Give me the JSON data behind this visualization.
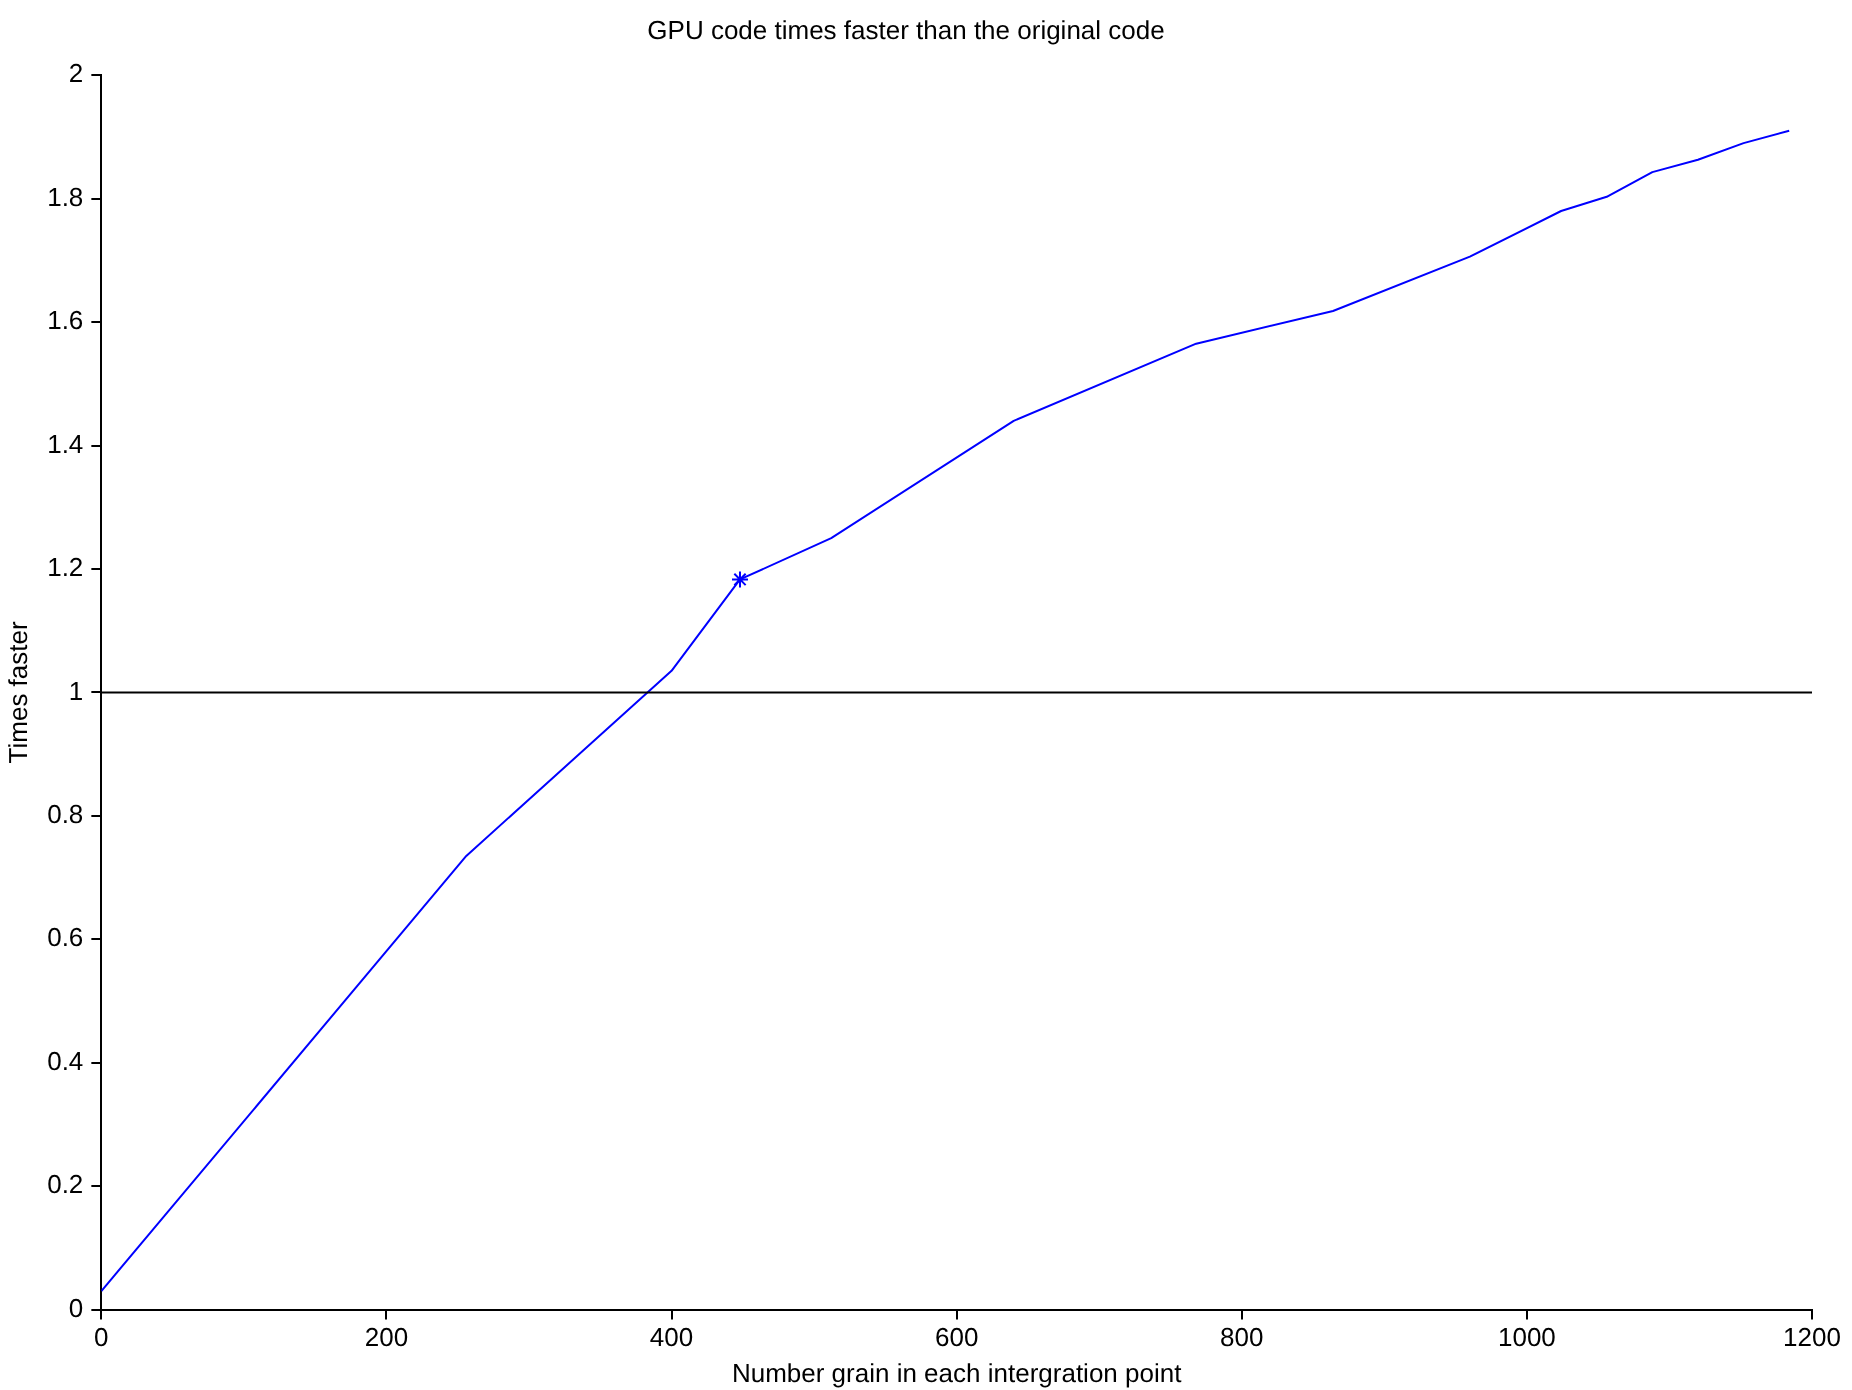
{
  "chart_data": {
    "type": "line",
    "title": "GPU code times faster than the original code",
    "xlabel": "Number grain in each intergration point",
    "ylabel": "Times faster",
    "xlim": [
      0,
      1200
    ],
    "xticks": [
      0,
      200,
      400,
      600,
      800,
      1000,
      1200
    ],
    "ylim": [
      0,
      2
    ],
    "yticks": [
      0,
      0.2,
      0.4,
      0.6,
      0.8,
      1,
      1.2,
      1.4,
      1.6,
      1.8,
      2
    ],
    "grid": false,
    "legend": false,
    "series": [
      {
        "color": "#0000ff",
        "marker": "none",
        "x": [
          0,
          256,
          400,
          448,
          512,
          640,
          768,
          864,
          960,
          1024,
          1056,
          1088,
          1120,
          1152,
          1184
        ],
        "values": [
          0.03,
          0.735,
          1.035,
          1.183,
          1.25,
          1.44,
          1.565,
          1.618,
          1.706,
          1.78,
          1.803,
          1.843,
          1.863,
          1.89,
          1.91
        ]
      },
      {
        "type": "scatter",
        "color": "#0000ff",
        "marker": "cross",
        "x": [
          448
        ],
        "values": [
          1.183
        ]
      }
    ],
    "ref_lines": [
      {
        "axis": "y",
        "value": 1,
        "color": "#000000"
      }
    ]
  }
}
